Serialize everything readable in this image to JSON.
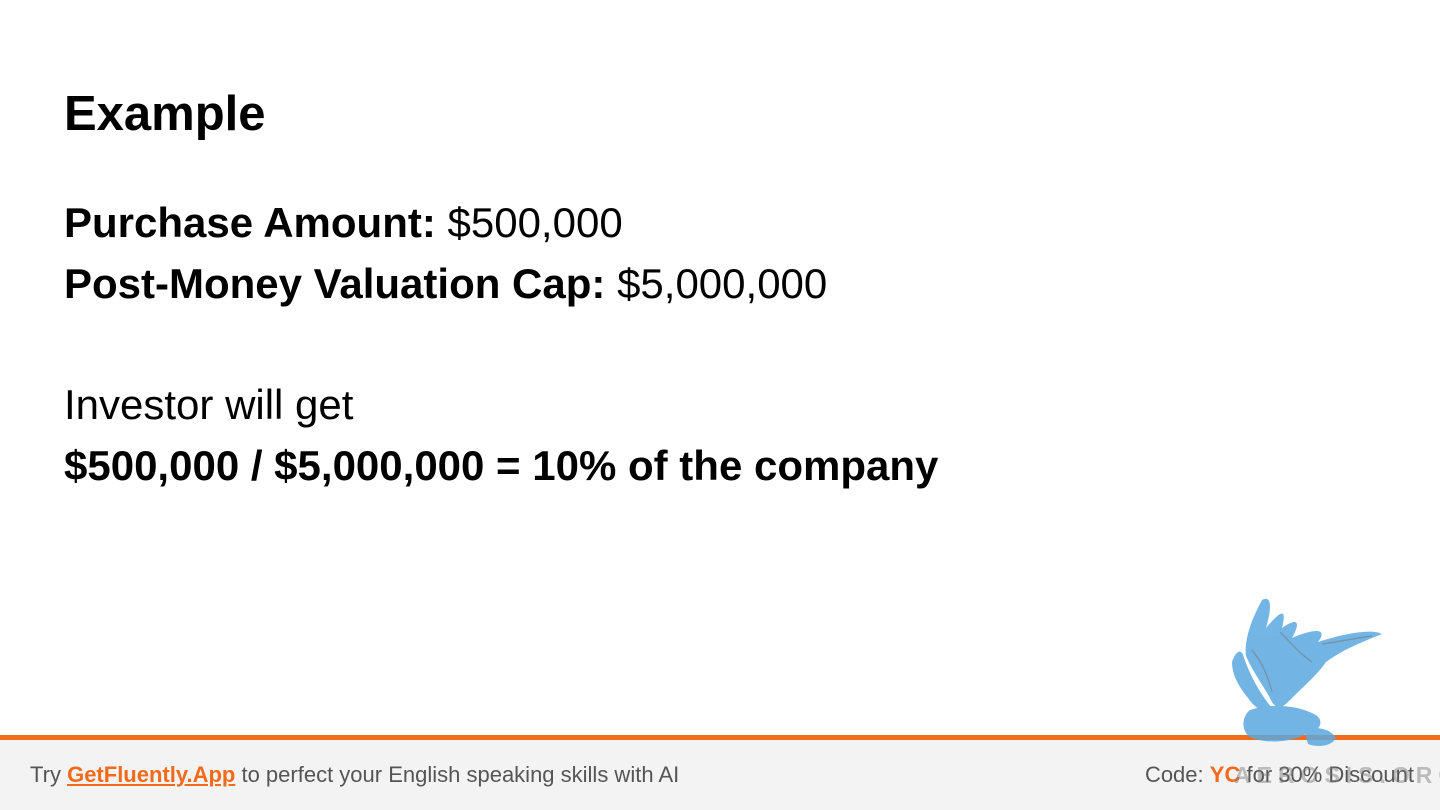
{
  "slide": {
    "title": "Example",
    "terms": [
      {
        "label": "Purchase Amount:",
        "value": "$500,000"
      },
      {
        "label": "Post-Money Valuation Cap:",
        "value": "$5,000,000"
      }
    ],
    "result_intro": "Investor will get",
    "result_calc": "$500,000 / $5,000,000 = 10% of the company"
  },
  "footer": {
    "try_text": "Try",
    "link_text": "GetFluently.App",
    "rest_text": "to perfect your English speaking skills with AI",
    "code_label": "Code:",
    "code_value": "YC",
    "discount_text": "for 30% Discount"
  },
  "watermark": {
    "text": "AEROSIS.ORG",
    "icon": "griffin-logo"
  },
  "colors": {
    "accent": "#f26a1b",
    "footer_bg": "#f3f3f3",
    "footer_text": "#555555",
    "watermark_blue": "#5aa9e0"
  }
}
